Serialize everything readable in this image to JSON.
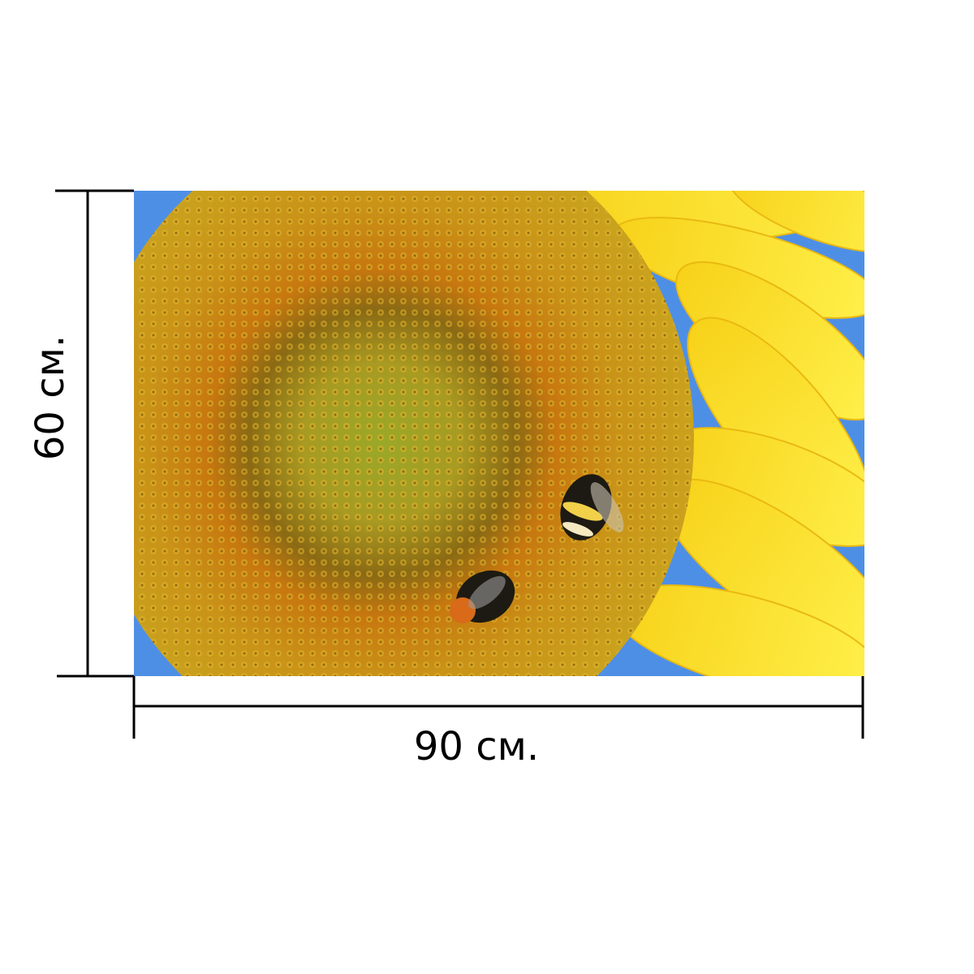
{
  "width_label": "90 см.",
  "height_label": "60 см."
}
